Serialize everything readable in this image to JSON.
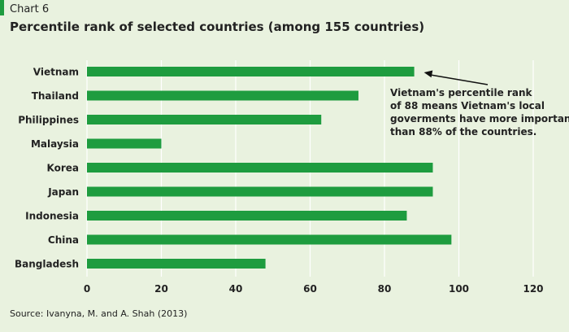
{
  "header": {
    "chart_label": "Chart 6",
    "title": "Percentile rank of selected countries (among 155 countries)"
  },
  "source": "Source:  Ivanyna, M. and A. Shah (2013)",
  "annotation": {
    "lines": [
      "Vietnam's percentile rank",
      "of 88 means Vietnam's local",
      "goverments have more importance",
      "than 88% of the countries."
    ],
    "target_category": "Vietnam"
  },
  "colors": {
    "bar": "#1e9c3f",
    "background": "#e9f2df",
    "grid": "#ffffff",
    "accent": "#1e9c3f",
    "text": "#222222"
  },
  "chart_data": {
    "type": "bar",
    "orientation": "horizontal",
    "categories": [
      "Vietnam",
      "Thailand",
      "Philippines",
      "Malaysia",
      "Korea",
      "Japan",
      "Indonesia",
      "China",
      "Bangladesh"
    ],
    "values": [
      88,
      73,
      63,
      20,
      93,
      93,
      86,
      98,
      48
    ],
    "xlim": [
      0,
      120
    ],
    "xticks": [
      0,
      20,
      40,
      60,
      80,
      100,
      120
    ],
    "grid": true
  }
}
